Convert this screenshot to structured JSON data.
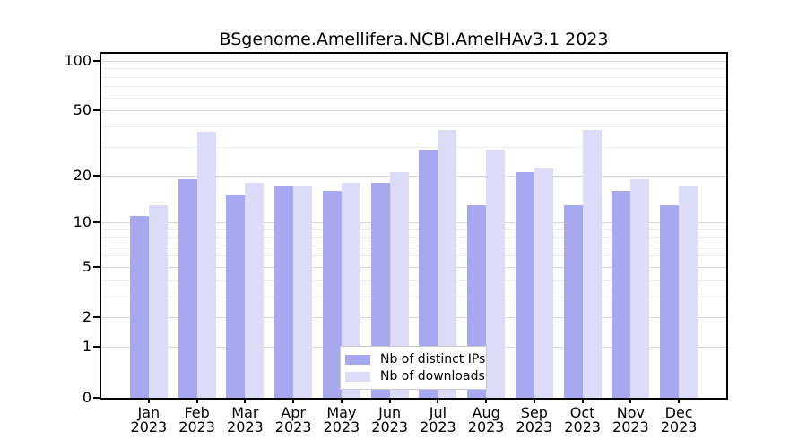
{
  "title": "BSgenome.Amellifera.NCBI.AmelHAv3.1 2023",
  "colors": {
    "distinct_ips_bar": "#a8a8f0",
    "downloads_bar": "#dcdcf8",
    "axis": "#000000",
    "major_gridline": "#d8d8d8",
    "minor_gridline": "#ededed",
    "legend_border": "#c9c9c9",
    "legend_background": "#ffffff",
    "background": "#ffffff"
  },
  "legend": {
    "items": [
      {
        "label": "Nb of distinct IPs",
        "series": "distinct_ips"
      },
      {
        "label": "Nb of downloads",
        "series": "downloads"
      }
    ]
  },
  "chart_data": {
    "type": "bar",
    "title": "BSgenome.Amellifera.NCBI.AmelHAv3.1 2023",
    "categories": [
      "Jan 2023",
      "Feb 2023",
      "Mar 2023",
      "Apr 2023",
      "May 2023",
      "Jun 2023",
      "Jul 2023",
      "Aug 2023",
      "Sep 2023",
      "Oct 2023",
      "Nov 2023",
      "Dec 2023"
    ],
    "series": [
      {
        "name": "Nb of distinct IPs",
        "color": "#a8a8f0",
        "values": [
          11,
          19,
          15,
          17,
          16,
          18,
          29,
          13,
          21,
          13,
          16,
          13
        ]
      },
      {
        "name": "Nb of downloads",
        "color": "#dcdcf8",
        "values": [
          13,
          37,
          18,
          17,
          18,
          21,
          38,
          29,
          22,
          38,
          19,
          17
        ]
      }
    ],
    "xlabel": "",
    "ylabel": "",
    "yscale": "log1p",
    "ylim": [
      0,
      110
    ],
    "yticks": [
      0,
      1,
      2,
      5,
      10,
      20,
      50,
      100
    ],
    "minor_gridlines": [
      3,
      4,
      6,
      7,
      8,
      9,
      30,
      40,
      60,
      70,
      80,
      90
    ],
    "grid": true,
    "legend_position": "inside-bottom-center"
  }
}
